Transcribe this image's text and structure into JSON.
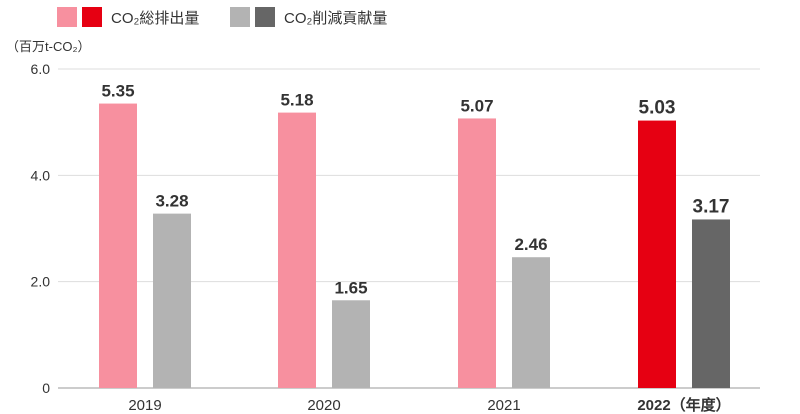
{
  "chart_data": {
    "type": "bar",
    "ylabel": "（百万t-CO₂）",
    "ylim": [
      0,
      6
    ],
    "yticks": [
      {
        "value": 0,
        "label": "0"
      },
      {
        "value": 2,
        "label": "2.0"
      },
      {
        "value": 4,
        "label": "4.0"
      },
      {
        "value": 6,
        "label": "6.0"
      }
    ],
    "grid": true,
    "legend_position": "top-left",
    "categories": [
      "2019",
      "2020",
      "2021",
      "2022（年度）"
    ],
    "highlight_index": 3,
    "series": [
      {
        "name": "CO₂総排出量",
        "values": [
          5.35,
          5.18,
          5.07,
          5.03
        ],
        "labels": [
          "5.35",
          "5.18",
          "5.07",
          "5.03"
        ],
        "color": "#f7909f",
        "highlight_color": "#e60012"
      },
      {
        "name": "CO₂削減貢献量",
        "values": [
          3.28,
          1.65,
          2.46,
          3.17
        ],
        "labels": [
          "3.28",
          "1.65",
          "2.46",
          "3.17"
        ],
        "color": "#b3b3b3",
        "highlight_color": "#666666"
      }
    ]
  }
}
